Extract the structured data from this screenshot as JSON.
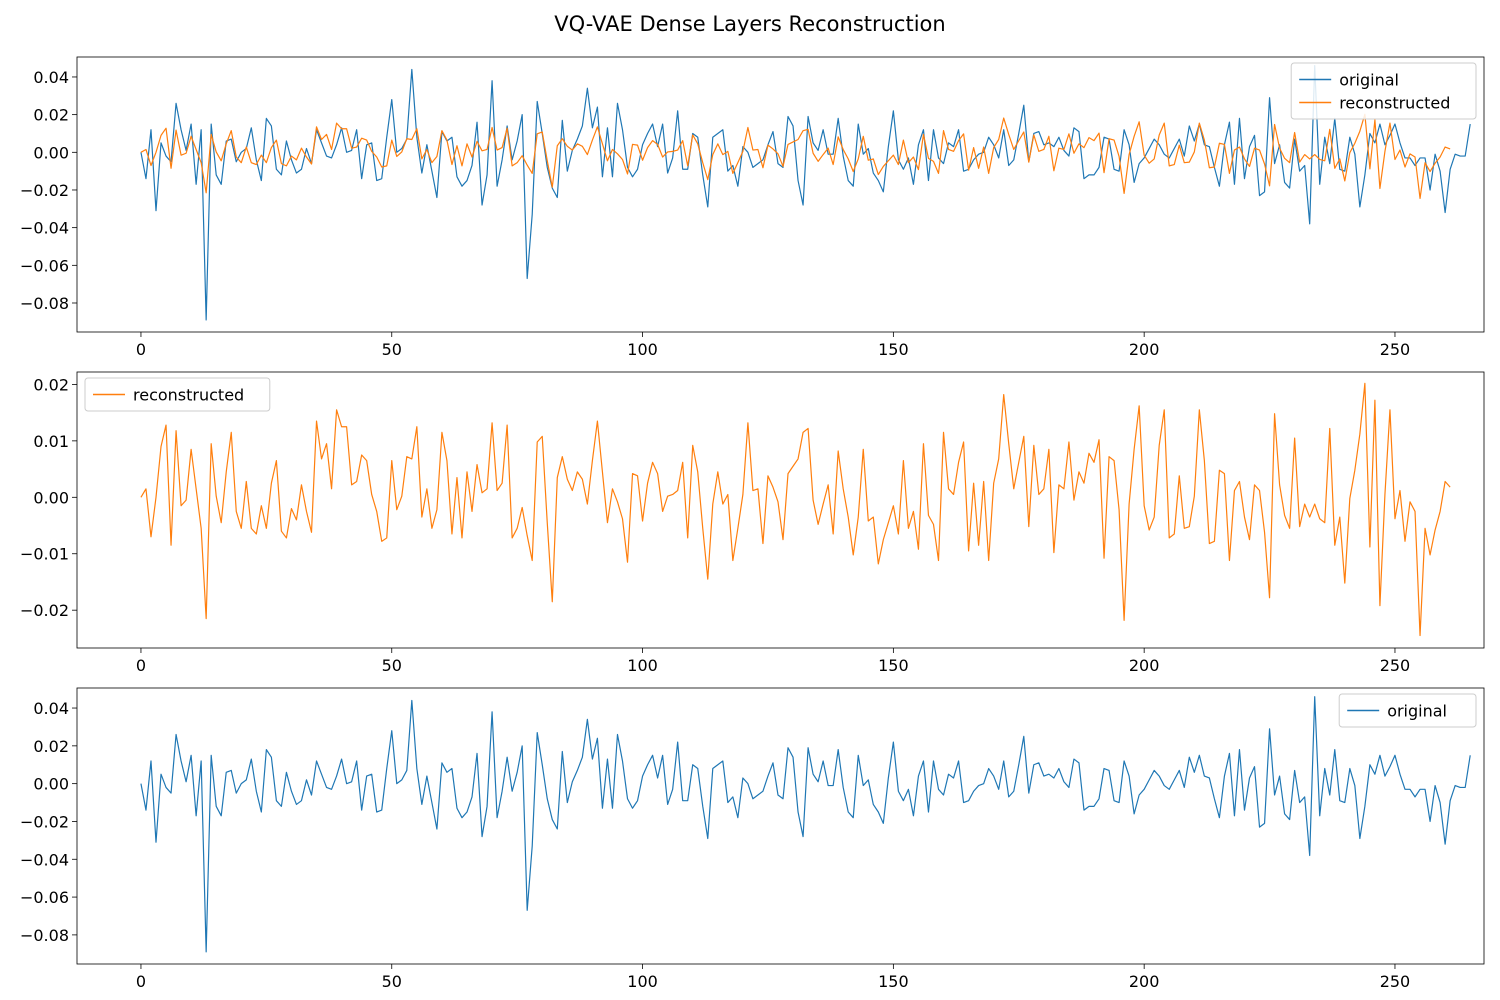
{
  "title": "VQ-VAE Dense Layers Reconstruction",
  "colors": {
    "original": "#1f77b4",
    "reconstructed": "#ff7f0e"
  },
  "chart_data": [
    {
      "type": "line",
      "xlim": [
        -12.75,
        267.75
      ],
      "ylim": [
        -0.0954,
        0.0506
      ],
      "xticks": [
        0,
        50,
        100,
        150,
        200,
        250
      ],
      "xtick_labels": [
        "0",
        "50",
        "100",
        "150",
        "200",
        "250"
      ],
      "yticks": [
        0.04,
        0.02,
        0.0,
        -0.02,
        -0.04,
        -0.06,
        -0.08
      ],
      "ytick_labels": [
        "0.04",
        "0.02",
        "0.00",
        "−0.02",
        "−0.04",
        "−0.06",
        "−0.08"
      ],
      "grid": false,
      "legend": "top-right",
      "series": [
        {
          "name": "original",
          "key": "original",
          "color": "#1f77b4"
        },
        {
          "name": "reconstructed",
          "key": "reconstructed",
          "color": "#ff7f0e"
        }
      ]
    },
    {
      "type": "line",
      "xlim": [
        -12.75,
        267.75
      ],
      "ylim": [
        -0.0267,
        0.0222
      ],
      "xticks": [
        0,
        50,
        100,
        150,
        200,
        250
      ],
      "xtick_labels": [
        "0",
        "50",
        "100",
        "150",
        "200",
        "250"
      ],
      "yticks": [
        0.02,
        0.01,
        0.0,
        -0.01,
        -0.02
      ],
      "ytick_labels": [
        "0.02",
        "0.01",
        "0.00",
        "−0.01",
        "−0.02"
      ],
      "grid": false,
      "legend": "top-left",
      "series": [
        {
          "name": "reconstructed",
          "key": "reconstructed",
          "color": "#ff7f0e"
        }
      ]
    },
    {
      "type": "line",
      "xlim": [
        -12.75,
        267.75
      ],
      "ylim": [
        -0.0954,
        0.0506
      ],
      "xticks": [
        0,
        50,
        100,
        150,
        200,
        250
      ],
      "xtick_labels": [
        "0",
        "50",
        "100",
        "150",
        "200",
        "250"
      ],
      "yticks": [
        0.04,
        0.02,
        0.0,
        -0.02,
        -0.04,
        -0.06,
        -0.08
      ],
      "ytick_labels": [
        "0.04",
        "0.02",
        "0.00",
        "−0.02",
        "−0.04",
        "−0.06",
        "−0.08"
      ],
      "grid": false,
      "legend": "top-right",
      "series": [
        {
          "name": "original",
          "key": "original",
          "color": "#1f77b4"
        }
      ]
    }
  ],
  "data": {
    "original": [
      0.0,
      -0.014,
      0.012,
      -0.031,
      0.005,
      -0.002,
      -0.005,
      0.026,
      0.012,
      0.001,
      0.015,
      -0.017,
      0.012,
      -0.089,
      0.015,
      -0.012,
      -0.017,
      0.006,
      0.007,
      -0.005,
      0.0,
      0.002,
      0.013,
      -0.004,
      -0.015,
      0.018,
      0.014,
      -0.009,
      -0.012,
      0.006,
      -0.004,
      -0.011,
      -0.009,
      0.002,
      -0.006,
      0.012,
      0.005,
      -0.002,
      -0.003,
      0.004,
      0.013,
      0.0,
      0.001,
      0.012,
      -0.014,
      0.004,
      0.005,
      -0.015,
      -0.014,
      0.008,
      0.028,
      0.0,
      0.002,
      0.007,
      0.044,
      0.008,
      -0.011,
      0.004,
      -0.01,
      -0.024,
      0.011,
      0.006,
      0.008,
      -0.013,
      -0.018,
      -0.015,
      -0.007,
      0.016,
      -0.028,
      -0.012,
      0.038,
      -0.018,
      -0.004,
      0.014,
      -0.004,
      0.006,
      0.02,
      -0.067,
      -0.033,
      0.027,
      0.01,
      -0.008,
      -0.019,
      -0.024,
      0.017,
      -0.01,
      0.001,
      0.007,
      0.014,
      0.034,
      0.013,
      0.024,
      -0.013,
      0.013,
      -0.013,
      0.026,
      0.012,
      -0.008,
      -0.013,
      -0.009,
      0.004,
      0.01,
      0.015,
      0.003,
      0.015,
      -0.011,
      -0.003,
      0.022,
      -0.009,
      -0.009,
      0.01,
      0.008,
      -0.012,
      -0.029,
      0.008,
      0.01,
      0.012,
      -0.01,
      -0.007,
      -0.018,
      0.003,
      0.0,
      -0.008,
      -0.006,
      -0.004,
      0.004,
      0.011,
      -0.006,
      -0.008,
      0.019,
      0.014,
      -0.015,
      -0.028,
      0.019,
      0.005,
      0.001,
      0.012,
      -0.001,
      -0.001,
      0.018,
      -0.002,
      -0.015,
      -0.018,
      0.015,
      -0.001,
      0.002,
      -0.011,
      -0.015,
      -0.021,
      0.003,
      0.022,
      -0.004,
      -0.009,
      -0.003,
      -0.017,
      0.004,
      0.012,
      -0.015,
      0.012,
      -0.003,
      -0.006,
      0.005,
      0.003,
      0.012,
      -0.01,
      -0.009,
      -0.004,
      -0.001,
      0.0,
      0.008,
      0.004,
      -0.003,
      0.012,
      -0.007,
      -0.004,
      0.01,
      0.025,
      -0.005,
      0.01,
      0.011,
      0.004,
      0.005,
      0.003,
      0.008,
      0.001,
      -0.002,
      0.013,
      0.011,
      -0.014,
      -0.012,
      -0.012,
      -0.008,
      0.008,
      0.007,
      -0.009,
      -0.01,
      0.012,
      0.004,
      -0.016,
      -0.006,
      -0.003,
      0.002,
      0.007,
      0.004,
      -0.001,
      -0.003,
      0.002,
      0.007,
      -0.002,
      0.014,
      0.006,
      0.015,
      0.004,
      0.003,
      -0.008,
      -0.018,
      0.004,
      0.016,
      -0.017,
      0.018,
      -0.014,
      0.003,
      0.009,
      -0.023,
      -0.021,
      0.029,
      -0.006,
      0.004,
      -0.016,
      -0.019,
      0.007,
      -0.01,
      -0.007,
      -0.038,
      0.046,
      -0.017,
      0.008,
      -0.006,
      0.018,
      -0.009,
      -0.01,
      0.008,
      -0.001,
      -0.029,
      -0.012,
      0.01,
      0.005,
      0.015,
      0.004,
      0.009,
      0.015,
      0.005,
      -0.003,
      -0.003,
      -0.007,
      -0.003,
      -0.003,
      -0.02,
      -0.001,
      -0.01,
      -0.032,
      -0.009,
      -0.001,
      -0.002,
      -0.002,
      0.015
    ],
    "reconstructed": [
      0.0,
      0.0015,
      -0.007,
      0.0,
      0.009,
      0.0128,
      -0.0085,
      0.0118,
      -0.0015,
      -0.0005,
      0.0085,
      0.0015,
      -0.0055,
      -0.0215,
      0.0095,
      0.0002,
      -0.0045,
      0.0045,
      0.0115,
      -0.0025,
      -0.0055,
      0.0028,
      -0.0055,
      -0.0065,
      -0.0015,
      -0.0055,
      0.0025,
      0.0065,
      -0.006,
      -0.0072,
      -0.002,
      -0.004,
      0.0022,
      -0.0025,
      -0.0062,
      0.0135,
      0.0068,
      0.0095,
      0.0015,
      0.0155,
      0.0125,
      0.0125,
      0.0022,
      0.0028,
      0.0075,
      0.0065,
      0.0005,
      -0.0025,
      -0.0078,
      -0.0072,
      0.0065,
      -0.0022,
      0.0002,
      0.0072,
      0.0068,
      0.0125,
      -0.0035,
      0.0015,
      -0.0055,
      -0.0022,
      0.0115,
      0.0065,
      -0.0065,
      0.0035,
      -0.0072,
      0.0045,
      -0.0025,
      0.0058,
      0.0008,
      0.0015,
      0.0132,
      0.0012,
      0.0025,
      0.0128,
      -0.0072,
      -0.0055,
      -0.0018,
      -0.0068,
      -0.0112,
      0.0098,
      0.0108,
      -0.0045,
      -0.0185,
      0.0035,
      0.0072,
      0.0032,
      0.0012,
      0.0045,
      0.0032,
      -0.0012,
      0.0065,
      0.0135,
      0.0045,
      -0.0045,
      0.0015,
      -0.0008,
      -0.0038,
      -0.0115,
      0.0042,
      0.0038,
      -0.0042,
      0.0025,
      0.0062,
      0.0042,
      -0.0025,
      0.0002,
      0.0005,
      0.0012,
      0.0062,
      -0.0072,
      0.0092,
      0.0045,
      -0.0055,
      -0.0145,
      -0.0012,
      0.0045,
      -0.0012,
      0.0005,
      -0.0112,
      -0.0055,
      0.0005,
      0.0132,
      0.0012,
      0.0015,
      -0.0082,
      0.0038,
      0.0018,
      -0.0008,
      -0.0075,
      0.0042,
      0.0055,
      0.0068,
      0.0115,
      0.0122,
      -0.0005,
      -0.0048,
      -0.0012,
      0.0022,
      -0.0065,
      0.0082,
      0.0015,
      -0.0035,
      -0.0102,
      -0.0035,
      0.0085,
      -0.0042,
      -0.0035,
      -0.0118,
      -0.0075,
      -0.0045,
      -0.0015,
      -0.0065,
      0.0065,
      -0.0055,
      -0.0025,
      -0.0092,
      0.0095,
      -0.0032,
      -0.0048,
      -0.0112,
      0.0115,
      0.0015,
      0.0005,
      0.0062,
      0.0098,
      -0.0095,
      0.0025,
      -0.0085,
      0.0028,
      -0.0112,
      0.0025,
      0.0068,
      0.0182,
      0.0095,
      0.0015,
      0.0062,
      0.0108,
      -0.0052,
      0.0092,
      0.0005,
      0.0015,
      0.0085,
      -0.0098,
      0.0022,
      0.0015,
      0.0098,
      -0.0005,
      0.0045,
      0.0025,
      0.0078,
      0.0062,
      0.0102,
      -0.0108,
      0.0072,
      0.0065,
      -0.0022,
      -0.0218,
      -0.0012,
      0.0085,
      0.0162,
      -0.0015,
      -0.0058,
      -0.0035,
      0.0092,
      0.0155,
      -0.0072,
      -0.0065,
      0.0038,
      -0.0055,
      -0.0052,
      0.0002,
      0.0155,
      0.0065,
      -0.0082,
      -0.0078,
      0.0048,
      0.0042,
      -0.0112,
      0.0012,
      0.0028,
      -0.0035,
      -0.0075,
      0.0022,
      0.0012,
      -0.0062,
      -0.0178,
      0.0148,
      0.0022,
      -0.0032,
      -0.0055,
      0.0105,
      -0.0052,
      -0.0012,
      -0.0035,
      -0.0012,
      -0.0038,
      -0.0045,
      0.0122,
      -0.0085,
      -0.0035,
      -0.0152,
      -0.0002,
      0.0048,
      0.0112,
      0.0202,
      -0.0088,
      0.0172,
      -0.0192,
      0.0005,
      0.0155,
      -0.0038,
      0.0012,
      -0.0078,
      -0.0008,
      -0.0025,
      -0.0245,
      -0.0055,
      -0.0102,
      -0.0058,
      -0.0025,
      0.0028,
      0.0018
    ]
  }
}
